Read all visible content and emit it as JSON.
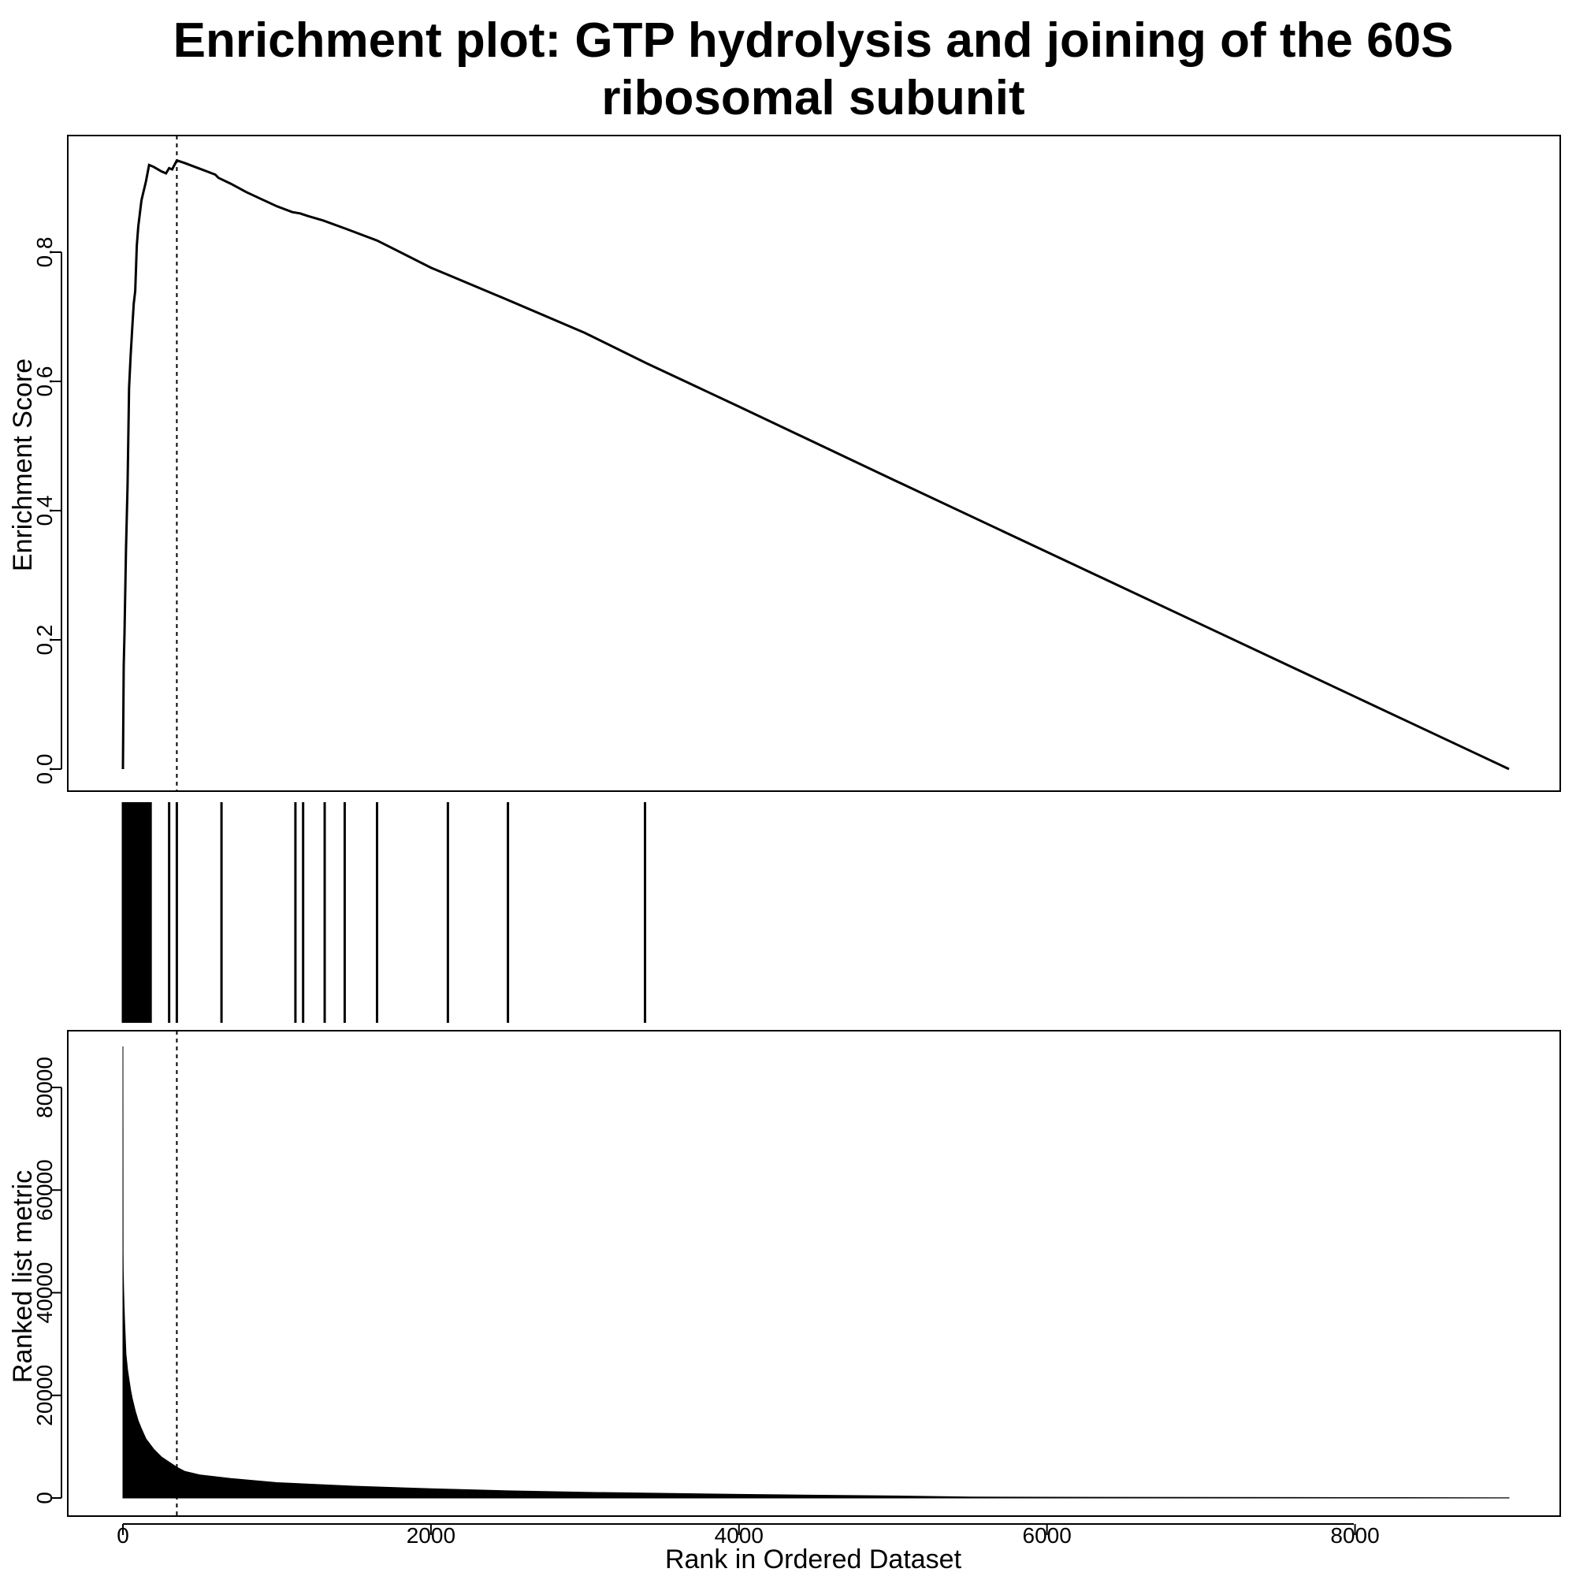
{
  "chart_data": [
    {
      "panel": "running-enrichment-score",
      "type": "line",
      "title_lines": [
        "Enrichment plot: GTP hydrolysis and joining of the 60S",
        "ribosomal subunit"
      ],
      "ylabel": "Enrichment Score",
      "xlim": [
        0,
        9000
      ],
      "ylim": [
        0,
        0.95
      ],
      "yticks": [
        0.0,
        0.2,
        0.4,
        0.6,
        0.8
      ],
      "ytick_labels": [
        "0.0",
        "0.2",
        "0.4",
        "0.6",
        "0.8"
      ],
      "peak_rank": 350,
      "x": [
        0,
        5,
        10,
        20,
        30,
        40,
        50,
        60,
        70,
        80,
        90,
        100,
        110,
        120,
        130,
        140,
        150,
        170,
        200,
        250,
        280,
        300,
        320,
        350,
        400,
        500,
        600,
        620,
        700,
        800,
        900,
        1000,
        1100,
        1150,
        1200,
        1300,
        1450,
        1650,
        2000,
        2100,
        2500,
        3000,
        3400,
        4000,
        5000,
        6000,
        7000,
        8000,
        9000
      ],
      "y": [
        0.0,
        0.16,
        0.21,
        0.34,
        0.44,
        0.59,
        0.64,
        0.68,
        0.72,
        0.74,
        0.81,
        0.84,
        0.86,
        0.88,
        0.89,
        0.9,
        0.91,
        0.935,
        0.932,
        0.925,
        0.922,
        0.93,
        0.928,
        0.942,
        0.938,
        0.929,
        0.92,
        0.915,
        0.906,
        0.893,
        0.882,
        0.871,
        0.862,
        0.86,
        0.856,
        0.849,
        0.836,
        0.818,
        0.776,
        0.766,
        0.726,
        0.675,
        0.628,
        0.561,
        0.448,
        0.336,
        0.224,
        0.112,
        0.0
      ]
    },
    {
      "panel": "gene-hits",
      "type": "barcode",
      "x": [
        0,
        8,
        15,
        22,
        30,
        38,
        45,
        52,
        60,
        68,
        75,
        82,
        90,
        98,
        105,
        112,
        120,
        128,
        135,
        142,
        150,
        160,
        170,
        180,
        300,
        350,
        640,
        1120,
        1170,
        1310,
        1440,
        1650,
        2110,
        2500,
        3390
      ]
    },
    {
      "panel": "ranked-list-metric",
      "type": "area",
      "xlabel": "Rank in Ordered Dataset",
      "ylabel": "Ranked list metric",
      "xlim": [
        0,
        9000
      ],
      "ylim": [
        0,
        88000
      ],
      "xticks": [
        0,
        2000,
        4000,
        6000,
        8000
      ],
      "xtick_labels": [
        "0",
        "2000",
        "4000",
        "6000",
        "8000"
      ],
      "yticks": [
        0,
        20000,
        40000,
        60000,
        80000
      ],
      "ytick_labels": [
        "0",
        "20000",
        "40000",
        "60000",
        "80000"
      ],
      "x": [
        0,
        1,
        2,
        5,
        10,
        20,
        30,
        40,
        50,
        60,
        80,
        100,
        120,
        150,
        200,
        250,
        300,
        350,
        400,
        500,
        700,
        1000,
        1500,
        2000,
        2500,
        3000,
        4000,
        5000,
        5500,
        6000,
        7000,
        8000,
        9000
      ],
      "y": [
        88000,
        48000,
        44000,
        40000,
        35000,
        28000,
        25000,
        23000,
        21000,
        19500,
        17000,
        15000,
        13500,
        11500,
        9500,
        8000,
        7000,
        6000,
        5200,
        4500,
        3800,
        3000,
        2300,
        1800,
        1400,
        1100,
        700,
        400,
        200,
        150,
        100,
        80,
        50
      ]
    }
  ]
}
